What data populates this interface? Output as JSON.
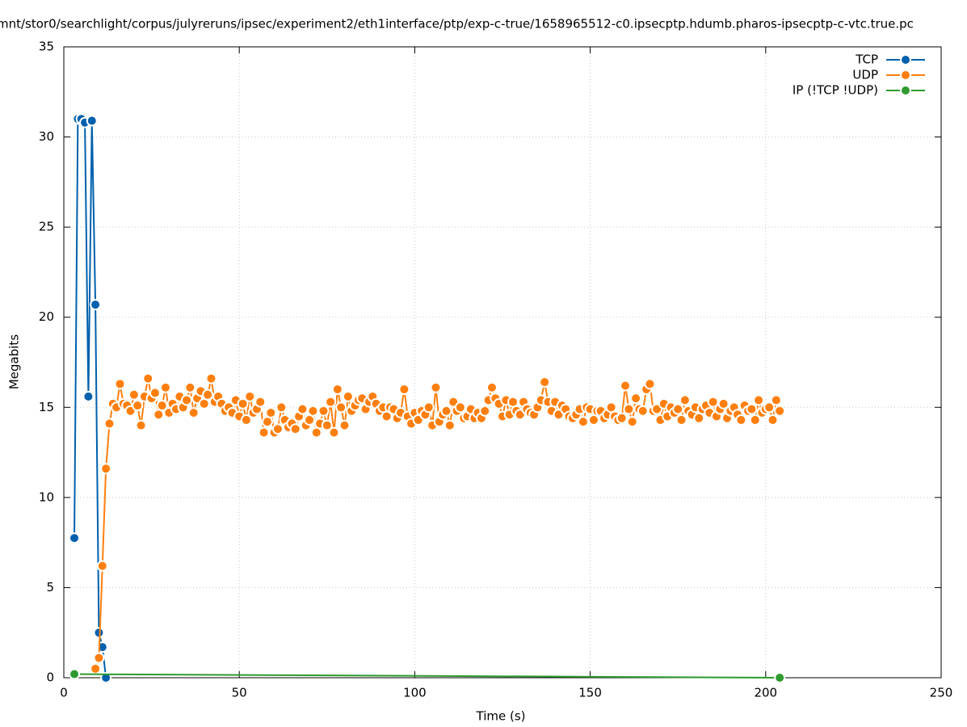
{
  "chart_data": {
    "type": "line",
    "title": "mnt/stor0/searchlight/corpus/julyreruns/ipsec/experiment2/eth1interface/ptp/exp-c-true/1658965512-c0.ipsecptp.hdumb.pharos-ipsecptp-c-vtc.true.pc",
    "x_label": "Time (s)",
    "y_label": "Megabits",
    "xlim": [
      0,
      250
    ],
    "xticks": [
      0,
      50,
      100,
      150,
      200,
      250
    ],
    "ylim": [
      0,
      35
    ],
    "yticks": [
      0,
      5,
      10,
      15,
      20,
      25,
      30,
      35
    ],
    "grid": true,
    "legend": "top-right",
    "series": [
      {
        "name": "TCP",
        "color": "#0060ad",
        "x": [
          3,
          4,
          5,
          6,
          7,
          8,
          9,
          10,
          11,
          12
        ],
        "values": [
          7.75,
          31,
          31,
          30.8,
          15.6,
          30.9,
          20.7,
          2.5,
          1.7,
          0
        ]
      },
      {
        "name": "UDP",
        "color": "#ff7f0e",
        "x": [
          9,
          10,
          11,
          12,
          13,
          14,
          15,
          16,
          17,
          18,
          19,
          20,
          21,
          22,
          23,
          24,
          25,
          26,
          27,
          28,
          29,
          30,
          31,
          32,
          33,
          34,
          35,
          36,
          37,
          38,
          39,
          40,
          41,
          42,
          43,
          44,
          45,
          46,
          47,
          48,
          49,
          50,
          51,
          52,
          53,
          54,
          55,
          56,
          57,
          58,
          59,
          60,
          61,
          62,
          63,
          64,
          65,
          66,
          67,
          68,
          69,
          70,
          71,
          72,
          73,
          74,
          75,
          76,
          77,
          78,
          79,
          80,
          81,
          82,
          83,
          84,
          85,
          86,
          87,
          88,
          89,
          90,
          91,
          92,
          93,
          94,
          95,
          96,
          97,
          98,
          99,
          100,
          101,
          102,
          103,
          104,
          105,
          106,
          107,
          108,
          109,
          110,
          111,
          112,
          113,
          114,
          115,
          116,
          117,
          118,
          119,
          120,
          121,
          122,
          123,
          124,
          125,
          126,
          127,
          128,
          129,
          130,
          131,
          132,
          133,
          134,
          135,
          136,
          137,
          138,
          139,
          140,
          141,
          142,
          143,
          144,
          145,
          146,
          147,
          148,
          149,
          150,
          151,
          152,
          153,
          154,
          155,
          156,
          157,
          158,
          159,
          160,
          161,
          162,
          163,
          164,
          165,
          166,
          167,
          168,
          169,
          170,
          171,
          172,
          173,
          174,
          175,
          176,
          177,
          178,
          179,
          180,
          181,
          182,
          183,
          184,
          185,
          186,
          187,
          188,
          189,
          190,
          191,
          192,
          193,
          194,
          195,
          196,
          197,
          198,
          199,
          200,
          201,
          202,
          203,
          204
        ],
        "values": [
          0.5,
          1.1,
          6.2,
          11.6,
          14.1,
          15.2,
          15.0,
          16.3,
          15.2,
          15.1,
          14.8,
          15.7,
          15.1,
          14.0,
          15.6,
          16.6,
          15.5,
          15.8,
          14.6,
          15.1,
          16.1,
          14.7,
          15.2,
          14.9,
          15.6,
          15.0,
          15.4,
          16.1,
          14.7,
          15.5,
          15.9,
          15.2,
          15.7,
          16.6,
          15.3,
          15.6,
          15.2,
          14.8,
          15.0,
          14.7,
          15.4,
          14.5,
          15.2,
          14.3,
          15.6,
          14.7,
          14.9,
          15.3,
          13.6,
          14.2,
          14.7,
          13.6,
          13.8,
          15.0,
          14.3,
          13.9,
          14.1,
          13.8,
          14.5,
          14.9,
          14.0,
          14.3,
          14.8,
          13.6,
          14.1,
          14.8,
          14.0,
          15.3,
          13.6,
          16.0,
          15.0,
          14.0,
          15.6,
          14.8,
          15.1,
          15.4,
          15.5,
          14.9,
          15.3,
          15.6,
          15.2,
          14.8,
          15.0,
          14.5,
          15.0,
          14.9,
          14.4,
          14.7,
          16.0,
          14.5,
          14.1,
          14.7,
          14.3,
          14.8,
          14.6,
          15.0,
          14.0,
          16.1,
          14.2,
          14.6,
          14.8,
          14.0,
          15.3,
          14.8,
          15.0,
          14.4,
          14.5,
          14.9,
          14.4,
          14.7,
          14.4,
          14.8,
          15.4,
          16.1,
          15.5,
          15.2,
          14.5,
          15.4,
          14.6,
          15.3,
          14.8,
          14.6,
          15.3,
          14.9,
          14.7,
          14.6,
          15.0,
          15.4,
          16.4,
          15.3,
          14.8,
          15.3,
          14.6,
          15.1,
          14.9,
          14.5,
          14.4,
          14.6,
          14.9,
          14.2,
          15.0,
          14.9,
          14.3,
          14.8,
          14.8,
          14.4,
          14.6,
          15.0,
          14.5,
          14.3,
          14.4,
          16.2,
          14.9,
          14.2,
          15.5,
          14.9,
          14.8,
          16.0,
          16.3,
          14.8,
          14.9,
          14.3,
          15.2,
          14.5,
          15.0,
          14.7,
          14.9,
          14.3,
          15.4,
          14.8,
          14.6,
          15.0,
          14.4,
          14.9,
          15.1,
          14.7,
          15.3,
          14.5,
          14.9,
          15.2,
          14.4,
          14.8,
          15.0,
          14.6,
          14.3,
          15.1,
          14.8,
          14.9,
          14.3,
          15.4,
          14.7,
          14.9,
          15.0,
          14.3,
          15.4,
          14.8
        ]
      },
      {
        "name": "IP (!TCP  !UDP)",
        "color": "#2e9a2e",
        "x": [
          3,
          204
        ],
        "values": [
          0.2,
          0
        ]
      }
    ]
  }
}
